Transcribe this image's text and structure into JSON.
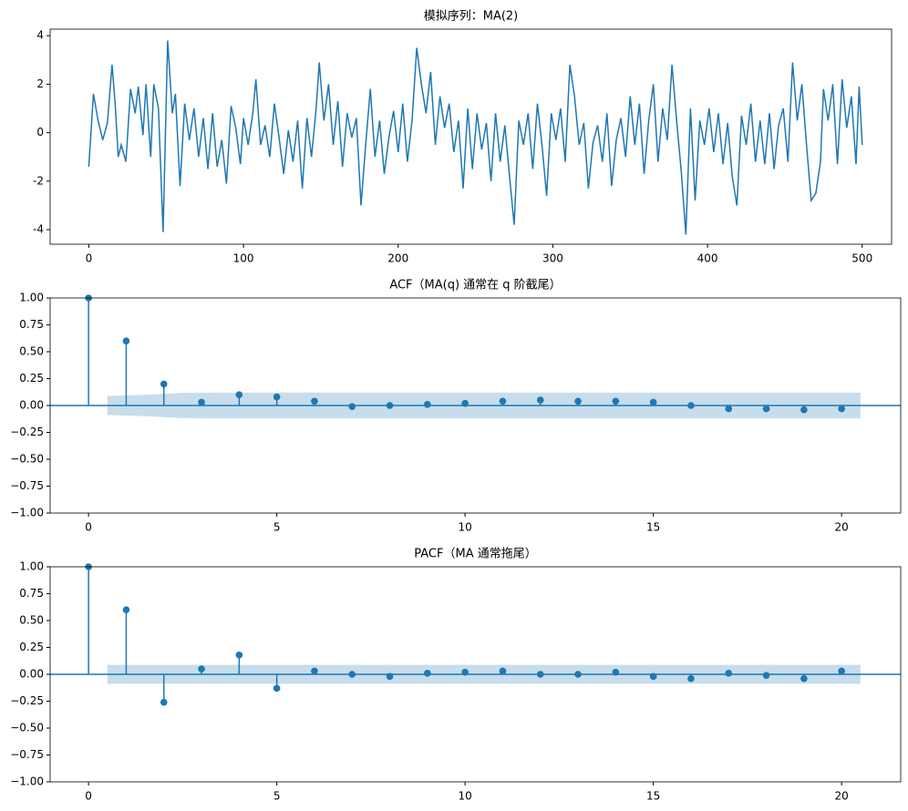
{
  "chart_data": [
    {
      "type": "line",
      "title": "模拟序列：MA(2)",
      "color": "#1f77b4",
      "x": [
        0,
        3,
        6,
        9,
        12,
        15,
        17,
        19,
        21,
        24,
        27,
        30,
        32,
        35,
        37,
        40,
        42,
        45,
        48,
        51,
        54,
        56,
        59,
        62,
        65,
        68,
        71,
        74,
        77,
        80,
        83,
        86,
        89,
        92,
        95,
        98,
        100,
        103,
        106,
        108,
        111,
        114,
        117,
        120,
        123,
        126,
        129,
        132,
        135,
        138,
        141,
        144,
        147,
        149,
        152,
        155,
        158,
        161,
        164,
        167,
        170,
        173,
        176,
        179,
        182,
        185,
        188,
        191,
        194,
        197,
        200,
        203,
        206,
        209,
        212,
        215,
        218,
        221,
        224,
        227,
        230,
        233,
        236,
        239,
        242,
        245,
        248,
        251,
        254,
        257,
        260,
        263,
        266,
        269,
        272,
        275,
        278,
        281,
        284,
        287,
        290,
        293,
        296,
        299,
        302,
        305,
        308,
        311,
        314,
        317,
        320,
        323,
        326,
        329,
        332,
        335,
        338,
        341,
        344,
        347,
        350,
        353,
        356,
        359,
        362,
        365,
        368,
        371,
        374,
        377,
        380,
        383,
        386,
        389,
        392,
        395,
        398,
        401,
        404,
        407,
        410,
        413,
        416,
        419,
        422,
        425,
        428,
        431,
        434,
        437,
        440,
        443,
        446,
        449,
        452,
        455,
        458,
        461,
        464,
        467,
        470,
        473,
        475,
        478,
        481,
        484,
        487,
        490,
        493,
        496,
        498,
        500
      ],
      "values": [
        -1.4,
        1.6,
        0.5,
        -0.3,
        0.4,
        2.8,
        1.2,
        -1,
        -0.5,
        -1.2,
        1.8,
        0.8,
        1.9,
        -0.1,
        2,
        -1,
        2,
        1,
        -4.1,
        3.8,
        0.8,
        1.6,
        -2.2,
        1.2,
        -0.3,
        1,
        -1,
        0.6,
        -1.5,
        0.8,
        -1.4,
        -0.3,
        -2.1,
        1.1,
        0.2,
        -1.3,
        0.6,
        -0.5,
        0.8,
        2.2,
        -0.5,
        0.3,
        -1,
        1.2,
        -0.2,
        -1.7,
        0.1,
        -1.2,
        0.5,
        -2.3,
        0.6,
        -1,
        1,
        2.9,
        0.5,
        2,
        -0.5,
        1.3,
        -1.4,
        0.8,
        -0.2,
        0.6,
        -3,
        -0.5,
        1.8,
        -1,
        0.5,
        -1.7,
        -0.2,
        0.9,
        -0.8,
        1.2,
        -1.2,
        0.5,
        3.5,
        2,
        0.8,
        2.5,
        -0.5,
        1.5,
        0.2,
        1.2,
        -0.8,
        0.5,
        -2.3,
        1,
        -1.5,
        0.8,
        -0.7,
        0.4,
        -2,
        0.8,
        -1.2,
        0.3,
        -1.8,
        -3.8,
        0.5,
        -0.5,
        0.8,
        -1.5,
        1.2,
        -0.5,
        -2.6,
        0.8,
        -0.3,
        1,
        -1.2,
        2.8,
        1.5,
        -0.5,
        0.4,
        -2.3,
        -0.4,
        0.3,
        -1.2,
        0.8,
        -2.2,
        -0.3,
        0.6,
        -1,
        1.5,
        -0.5,
        1.2,
        -1.7,
        0.5,
        2,
        -1.2,
        1,
        -0.3,
        2.8,
        0.5,
        -1.6,
        -4.2,
        1,
        -2.8,
        0.5,
        -0.5,
        1,
        -0.8,
        0.8,
        -1.3,
        0.4,
        -1.8,
        -3,
        0.7,
        -0.5,
        1.2,
        -1.2,
        0.5,
        -1.3,
        0.8,
        -1.5,
        0.3,
        1,
        -1.2,
        2.9,
        0.5,
        2,
        -0.5,
        -2.8,
        -2.5,
        -1.2,
        1.8,
        0.5,
        2,
        -1.3,
        2.2,
        0.2,
        1.5,
        -1.3,
        1.9,
        -0.5
      ],
      "xlim": [
        -25,
        519
      ],
      "xticks": [
        0,
        100,
        200,
        300,
        400,
        500
      ],
      "ylim": [
        -4.6,
        4.27
      ],
      "yticks": [
        -4,
        -2,
        0,
        2,
        4
      ]
    },
    {
      "type": "stem",
      "title": "ACF（MA(q) 通常在 q 阶截尾）",
      "color": "#1f77b4",
      "x": [
        0,
        1,
        2,
        3,
        4,
        5,
        6,
        7,
        8,
        9,
        10,
        11,
        12,
        13,
        14,
        15,
        16,
        17,
        18,
        19,
        20
      ],
      "values": [
        1,
        0.6,
        0.2,
        0.03,
        0.1,
        0.08,
        0.04,
        -0.01,
        0,
        0.01,
        0.02,
        0.04,
        0.05,
        0.04,
        0.04,
        0.03,
        0,
        -0.03,
        -0.03,
        -0.04,
        -0.03
      ],
      "band": {
        "x": [
          0.5,
          1.5,
          2.5,
          3.5,
          20.5
        ],
        "upper": [
          0.088,
          0.1,
          0.118,
          0.12,
          0.12
        ],
        "lower": [
          -0.088,
          -0.1,
          -0.118,
          -0.12,
          -0.12
        ]
      },
      "xlim": [
        -1.02,
        21.57
      ],
      "xticks": [
        0,
        5,
        10,
        15,
        20
      ],
      "ylim": [
        -1,
        1
      ],
      "yticks": [
        {
          "value": -1,
          "label": "−1.00"
        },
        {
          "value": -0.75,
          "label": "−0.75"
        },
        {
          "value": -0.5,
          "label": "−0.50"
        },
        {
          "value": -0.25,
          "label": "−0.25"
        },
        {
          "value": 0,
          "label": "0.00"
        },
        {
          "value": 0.25,
          "label": "0.25"
        },
        {
          "value": 0.5,
          "label": "0.50"
        },
        {
          "value": 0.75,
          "label": "0.75"
        },
        {
          "value": 1,
          "label": "1.00"
        }
      ]
    },
    {
      "type": "stem",
      "title": "PACF（MA 通常拖尾）",
      "color": "#1f77b4",
      "x": [
        0,
        1,
        2,
        3,
        4,
        5,
        6,
        7,
        8,
        9,
        10,
        11,
        12,
        13,
        14,
        15,
        16,
        17,
        18,
        19,
        20
      ],
      "values": [
        1,
        0.6,
        -0.26,
        0.05,
        0.18,
        -0.13,
        0.03,
        0,
        -0.02,
        0.01,
        0.02,
        0.03,
        0,
        0,
        0.02,
        -0.02,
        -0.04,
        0.01,
        -0.01,
        -0.04,
        0.03
      ],
      "band": {
        "x": [
          0.5,
          20.5
        ],
        "upper": [
          0.088,
          0.088
        ],
        "lower": [
          -0.088,
          -0.088
        ]
      },
      "xlim": [
        -1.02,
        21.57
      ],
      "xticks": [
        0,
        5,
        10,
        15,
        20
      ],
      "ylim": [
        -1,
        1
      ],
      "yticks": [
        {
          "value": -1,
          "label": "−1.00"
        },
        {
          "value": -0.75,
          "label": "−0.75"
        },
        {
          "value": -0.5,
          "label": "−0.50"
        },
        {
          "value": -0.25,
          "label": "−0.25"
        },
        {
          "value": 0,
          "label": "0.00"
        },
        {
          "value": 0.25,
          "label": "0.25"
        },
        {
          "value": 0.5,
          "label": "0.50"
        },
        {
          "value": 0.75,
          "label": "0.75"
        },
        {
          "value": 1,
          "label": "1.00"
        }
      ]
    }
  ]
}
